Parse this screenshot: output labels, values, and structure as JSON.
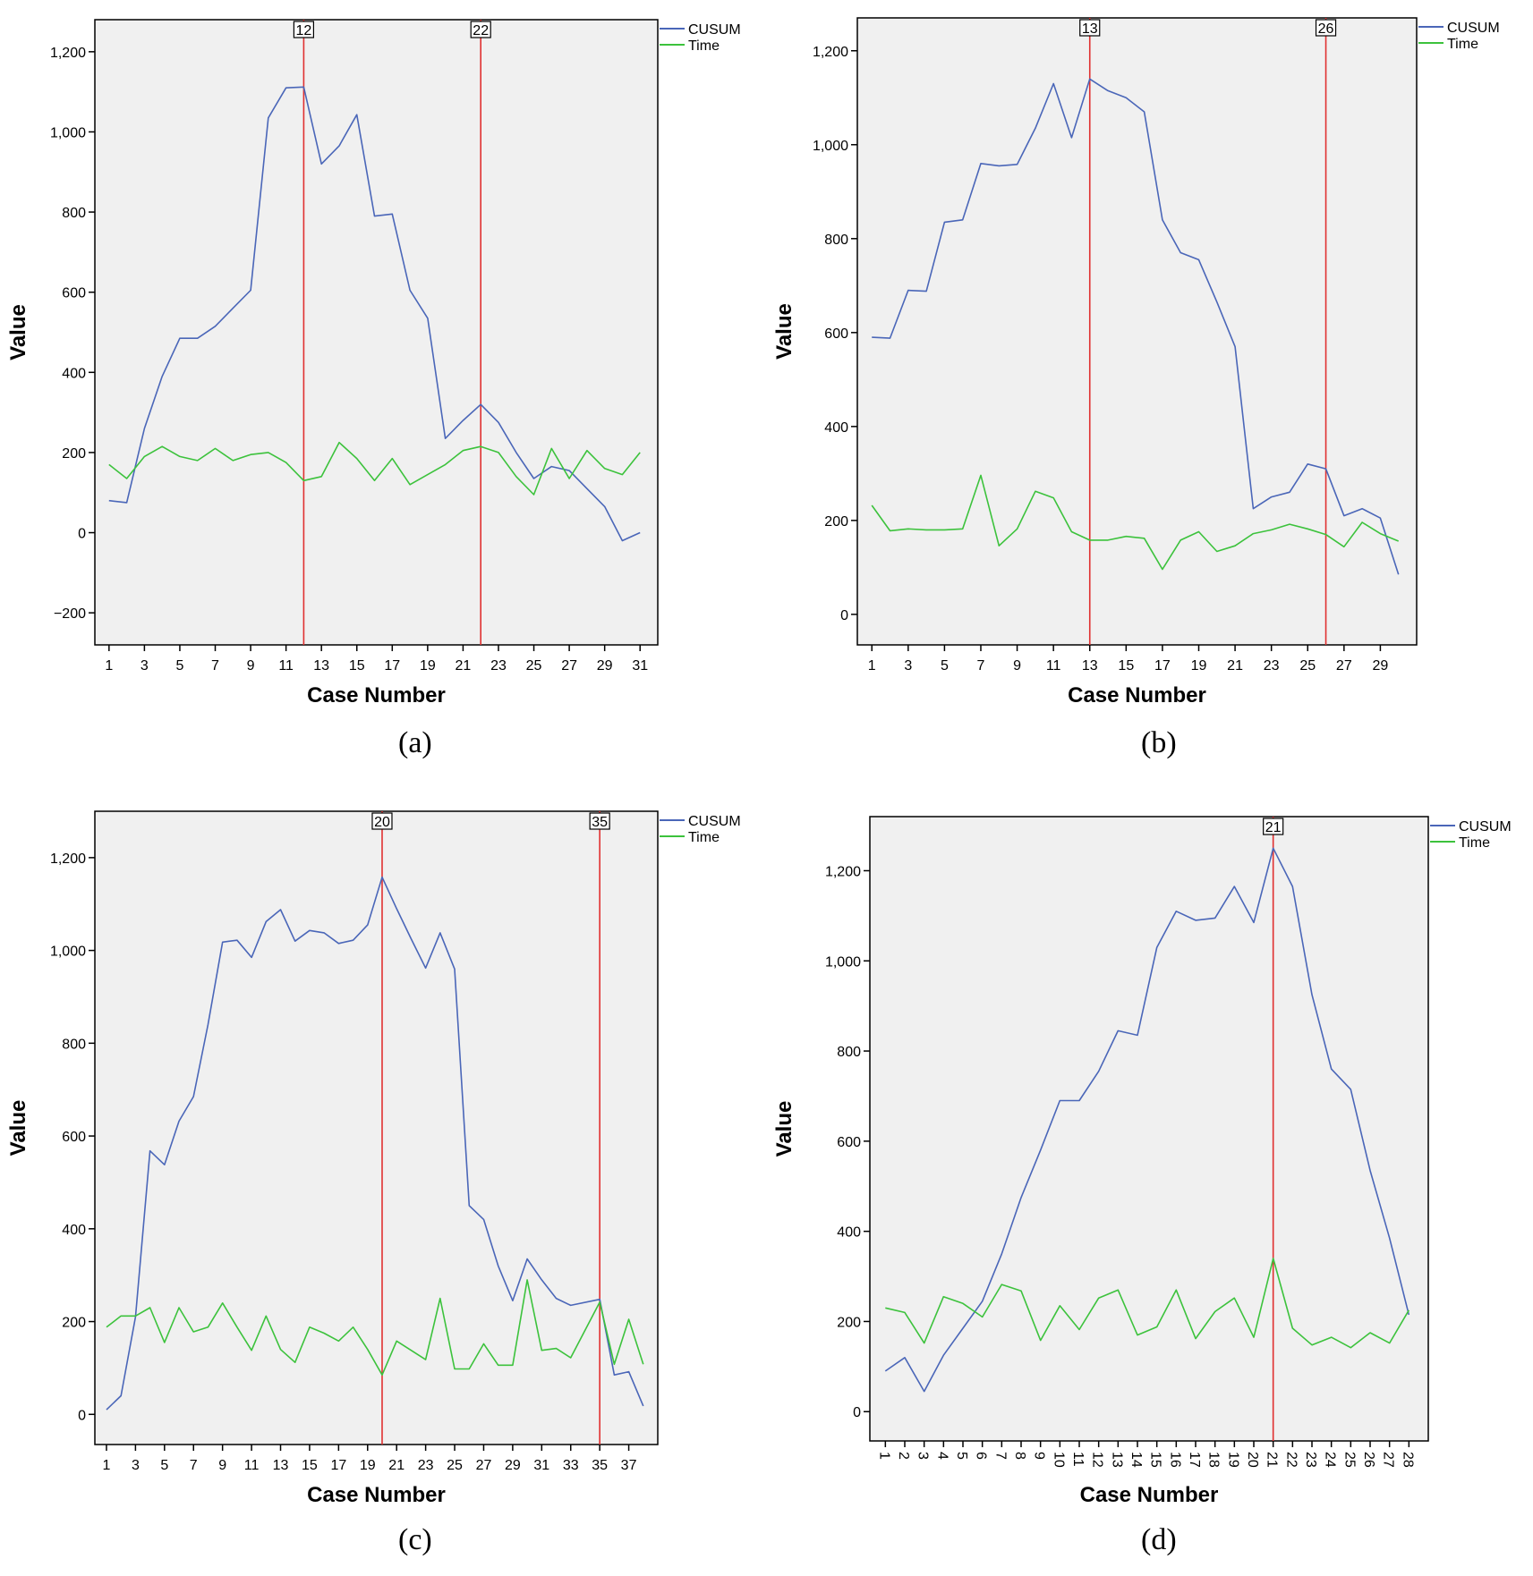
{
  "colors": {
    "cusum": "#4a66b8",
    "time": "#3cc23c",
    "reference": "#e03030",
    "plot_bg": "#f0f0f0"
  },
  "chart_data": [
    {
      "type": "line",
      "caption": "(a)",
      "xlabel": "Case Number",
      "ylabel": "Value",
      "ylim": [
        -280,
        1280
      ],
      "yticks": [
        -200,
        0,
        200,
        400,
        600,
        800,
        1000,
        1200
      ],
      "ytick_labels": [
        "−200",
        "0",
        "200",
        "400",
        "600",
        "800",
        "1,000",
        "1,200"
      ],
      "xticks": [
        "1",
        "3",
        "5",
        "7",
        "9",
        "11",
        "13",
        "15",
        "17",
        "19",
        "21",
        "23",
        "25",
        "27",
        "29",
        "31"
      ],
      "x_rotate": false,
      "x": [
        1,
        2,
        3,
        4,
        5,
        6,
        7,
        8,
        9,
        10,
        11,
        12,
        13,
        14,
        15,
        16,
        17,
        18,
        19,
        20,
        21,
        22,
        23,
        24,
        25,
        26,
        27,
        28,
        29,
        30,
        31
      ],
      "reference_lines": [
        12,
        22
      ],
      "reference_labels": [
        "12",
        "22"
      ],
      "legend": [
        "CUSUM",
        "Time"
      ],
      "series": [
        {
          "name": "CUSUM",
          "values": [
            80,
            75,
            260,
            390,
            485,
            485,
            515,
            560,
            605,
            1035,
            1110,
            1112,
            920,
            965,
            1043,
            790,
            795,
            605,
            535,
            235,
            280,
            320,
            275,
            200,
            135,
            165,
            155,
            110,
            65,
            -20,
            0
          ]
        },
        {
          "name": "Time",
          "values": [
            170,
            135,
            190,
            215,
            190,
            180,
            210,
            180,
            195,
            200,
            175,
            130,
            140,
            225,
            185,
            130,
            185,
            120,
            145,
            170,
            205,
            215,
            200,
            140,
            95,
            210,
            135,
            205,
            160,
            145,
            200
          ]
        }
      ]
    },
    {
      "type": "line",
      "caption": "(b)",
      "xlabel": "Case Number",
      "ylabel": "Value",
      "ylim": [
        -65,
        1270
      ],
      "yticks": [
        0,
        200,
        400,
        600,
        800,
        1000,
        1200
      ],
      "ytick_labels": [
        "0",
        "200",
        "400",
        "600",
        "800",
        "1,000",
        "1,200"
      ],
      "xticks": [
        "1",
        "3",
        "5",
        "7",
        "9",
        "11",
        "13",
        "15",
        "17",
        "19",
        "21",
        "23",
        "25",
        "27",
        "29"
      ],
      "x_rotate": false,
      "x": [
        1,
        2,
        3,
        4,
        5,
        6,
        7,
        8,
        9,
        10,
        11,
        12,
        13,
        14,
        15,
        16,
        17,
        18,
        19,
        20,
        21,
        22,
        23,
        24,
        25,
        26,
        27,
        28,
        29,
        30
      ],
      "reference_lines": [
        13,
        26
      ],
      "reference_labels": [
        "13",
        "26"
      ],
      "legend": [
        "CUSUM",
        "Time"
      ],
      "series": [
        {
          "name": "CUSUM",
          "values": [
            590,
            588,
            690,
            688,
            835,
            840,
            960,
            955,
            958,
            1035,
            1130,
            1015,
            1140,
            1115,
            1100,
            1070,
            840,
            770,
            755,
            665,
            570,
            225,
            250,
            260,
            320,
            310,
            210,
            225,
            205,
            85
          ]
        },
        {
          "name": "Time",
          "values": [
            232,
            178,
            182,
            180,
            180,
            182,
            296,
            146,
            182,
            262,
            248,
            176,
            158,
            158,
            166,
            162,
            96,
            158,
            176,
            134,
            146,
            172,
            180,
            192,
            182,
            170,
            144,
            196,
            172,
            156
          ]
        }
      ]
    },
    {
      "type": "line",
      "caption": "(c)",
      "xlabel": "Case Number",
      "ylabel": "Value",
      "ylim": [
        -65,
        1300
      ],
      "yticks": [
        0,
        200,
        400,
        600,
        800,
        1000,
        1200
      ],
      "ytick_labels": [
        "0",
        "200",
        "400",
        "600",
        "800",
        "1,000",
        "1,200"
      ],
      "xticks": [
        "1",
        "3",
        "5",
        "7",
        "9",
        "11",
        "13",
        "15",
        "17",
        "19",
        "21",
        "23",
        "25",
        "27",
        "29",
        "31",
        "33",
        "35",
        "37"
      ],
      "x_rotate": false,
      "x": [
        1,
        2,
        3,
        4,
        5,
        6,
        7,
        8,
        9,
        10,
        11,
        12,
        13,
        14,
        15,
        16,
        17,
        18,
        19,
        20,
        21,
        22,
        23,
        24,
        25,
        26,
        27,
        28,
        29,
        30,
        31,
        32,
        33,
        35,
        36,
        37,
        38
      ],
      "reference_lines": [
        20,
        35
      ],
      "reference_labels": [
        "20",
        "35"
      ],
      "legend": [
        "CUSUM",
        "Time"
      ],
      "series": [
        {
          "name": "CUSUM",
          "values": [
            10,
            40,
            210,
            568,
            538,
            632,
            685,
            840,
            1018,
            1022,
            985,
            1062,
            1088,
            1020,
            1043,
            1038,
            1015,
            1022,
            1055,
            1158,
            1090,
            1025,
            962,
            1038,
            960,
            450,
            420,
            320,
            245,
            335,
            290,
            250,
            235,
            248,
            85,
            92,
            18
          ]
        },
        {
          "name": "Time",
          "values": [
            188,
            212,
            212,
            230,
            155,
            230,
            178,
            188,
            240,
            188,
            138,
            212,
            140,
            112,
            188,
            175,
            158,
            188,
            140,
            85,
            158,
            138,
            118,
            250,
            98,
            98,
            152,
            106,
            106,
            290,
            138,
            142,
            122,
            242,
            108,
            205,
            108
          ]
        }
      ]
    },
    {
      "type": "line",
      "caption": "(d)",
      "xlabel": "Case Number",
      "ylabel": "Value",
      "ylim": [
        -65,
        1320
      ],
      "yticks": [
        0,
        200,
        400,
        600,
        800,
        1000,
        1200
      ],
      "ytick_labels": [
        "0",
        "200",
        "400",
        "600",
        "800",
        "1,000",
        "1,200"
      ],
      "xticks": [
        "1",
        "2",
        "3",
        "4",
        "5",
        "6",
        "7",
        "8",
        "9",
        "10",
        "11",
        "12",
        "13",
        "14",
        "15",
        "16",
        "17",
        "18",
        "19",
        "20",
        "21",
        "22",
        "23",
        "24",
        "25",
        "26",
        "27",
        "28"
      ],
      "x_rotate": true,
      "x": [
        1,
        2,
        3,
        4,
        5,
        6,
        7,
        8,
        9,
        10,
        11,
        12,
        13,
        14,
        15,
        16,
        17,
        18,
        19,
        20,
        21,
        22,
        23,
        24,
        25,
        26,
        27,
        28
      ],
      "reference_lines": [
        21
      ],
      "reference_labels": [
        "21"
      ],
      "legend": [
        "CUSUM",
        "Time"
      ],
      "series": [
        {
          "name": "CUSUM",
          "values": [
            90,
            120,
            45,
            125,
            185,
            245,
            350,
            475,
            580,
            690,
            690,
            755,
            845,
            835,
            1030,
            1110,
            1090,
            1095,
            1165,
            1085,
            1250,
            1165,
            925,
            760,
            715,
            535,
            385,
            215
          ]
        },
        {
          "name": "Time",
          "values": [
            230,
            220,
            152,
            255,
            240,
            210,
            282,
            268,
            158,
            235,
            182,
            252,
            270,
            170,
            188,
            270,
            162,
            222,
            252,
            165,
            340,
            185,
            148,
            165,
            142,
            175,
            152,
            225
          ]
        }
      ]
    }
  ]
}
